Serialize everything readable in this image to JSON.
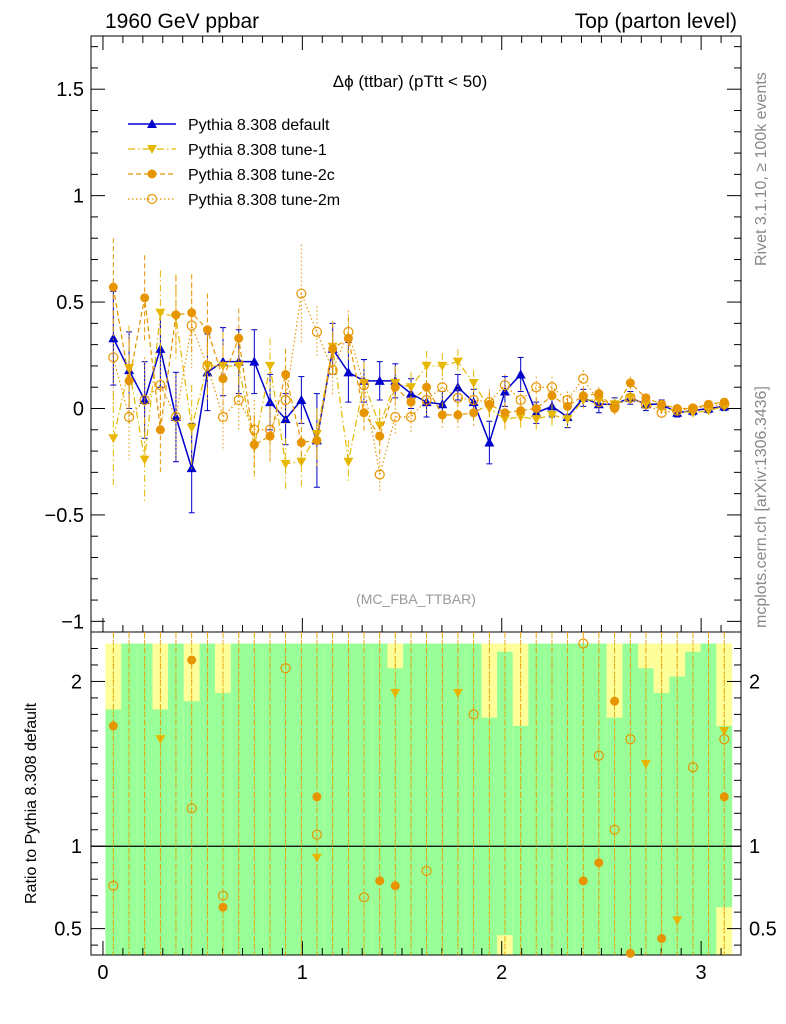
{
  "header": {
    "left_title": "1960 GeV ppbar",
    "right_title": "Top (parton level)"
  },
  "side_labels": {
    "rivet": "Rivet 3.1.10, ≥ 100k events",
    "mcplots": "mcplots.cern.ch [arXiv:1306.3436]"
  },
  "chart_data": [
    {
      "type": "line",
      "panel": "main",
      "title": "Δϕ (ttbar) (pTtt < 50)",
      "analysis_label": "(MC_FBA_TTBAR)",
      "xlabel": "",
      "ylabel": "",
      "xlim": [
        -0.06,
        3.2
      ],
      "ylim": [
        -1.05,
        1.75
      ],
      "yticks": [
        -1,
        -0.5,
        0,
        0.5,
        1,
        1.5
      ],
      "ytick_labels": [
        "−1",
        "−0.5",
        "0",
        "0.5",
        "1",
        "1.5"
      ],
      "legend_position": "top-left",
      "x": [
        0.052,
        0.131,
        0.209,
        0.288,
        0.366,
        0.445,
        0.524,
        0.602,
        0.681,
        0.759,
        0.838,
        0.916,
        0.995,
        1.073,
        1.152,
        1.231,
        1.309,
        1.388,
        1.466,
        1.545,
        1.623,
        1.702,
        1.78,
        1.859,
        1.938,
        2.016,
        2.095,
        2.173,
        2.252,
        2.33,
        2.409,
        2.487,
        2.566,
        2.645,
        2.723,
        2.802,
        2.88,
        2.959,
        3.037,
        3.116
      ],
      "series": [
        {
          "name": "Pythia 8.308 default",
          "color": "#0000cc",
          "marker": "triangle-up",
          "line": "solid",
          "values": [
            0.33,
            0.18,
            0.04,
            0.28,
            -0.04,
            -0.28,
            0.17,
            0.22,
            0.22,
            0.22,
            0.03,
            -0.05,
            0.04,
            -0.15,
            0.28,
            0.17,
            0.13,
            0.13,
            0.13,
            0.07,
            0.03,
            0.02,
            0.1,
            0.03,
            -0.16,
            0.08,
            0.16,
            -0.02,
            0.01,
            -0.04,
            0.05,
            0.02,
            0.02,
            0.05,
            0.02,
            0.02,
            -0.02,
            -0.01,
            0.0,
            0.01
          ],
          "errors": [
            0.22,
            0.18,
            0.18,
            0.18,
            0.21,
            0.21,
            0.18,
            0.16,
            0.15,
            0.15,
            0.13,
            0.12,
            0.11,
            0.22,
            0.12,
            0.14,
            0.1,
            0.09,
            0.08,
            0.07,
            0.07,
            0.06,
            0.06,
            0.06,
            0.1,
            0.07,
            0.08,
            0.05,
            0.05,
            0.05,
            0.04,
            0.04,
            0.03,
            0.03,
            0.03,
            0.02,
            0.02,
            0.02,
            0.02,
            0.02
          ]
        },
        {
          "name": "Pythia 8.308 tune-1",
          "color": "#e6b800",
          "marker": "triangle-down",
          "line": "dash-dot",
          "values": [
            -0.14,
            0.19,
            -0.24,
            0.45,
            0.43,
            -0.09,
            0.2,
            0.2,
            0.2,
            -0.18,
            0.2,
            -0.26,
            -0.25,
            -0.12,
            0.29,
            -0.25,
            0.12,
            -0.08,
            0.12,
            0.1,
            0.2,
            0.2,
            0.22,
            0.12,
            0.0,
            -0.05,
            -0.04,
            -0.05,
            -0.03,
            -0.05,
            0.04,
            0.04,
            0.02,
            0.05,
            0.02,
            0.0,
            -0.01,
            -0.02,
            -0.01,
            0.01
          ],
          "errors": [
            0.22,
            0.2,
            0.2,
            0.2,
            0.2,
            0.2,
            0.17,
            0.16,
            0.15,
            0.14,
            0.13,
            0.12,
            0.12,
            0.12,
            0.12,
            0.1,
            0.1,
            0.08,
            0.08,
            0.07,
            0.07,
            0.06,
            0.06,
            0.06,
            0.06,
            0.05,
            0.05,
            0.05,
            0.05,
            0.04,
            0.04,
            0.03,
            0.03,
            0.03,
            0.02,
            0.02,
            0.02,
            0.02,
            0.02,
            0.02
          ]
        },
        {
          "name": "Pythia 8.308 tune-2c",
          "color": "#e69500",
          "marker": "circle",
          "line": "dashed",
          "values": [
            0.57,
            0.13,
            0.52,
            -0.1,
            0.44,
            0.45,
            0.37,
            0.14,
            0.33,
            -0.17,
            -0.13,
            0.16,
            -0.16,
            -0.15,
            0.28,
            0.33,
            -0.02,
            -0.13,
            0.1,
            0.03,
            0.1,
            -0.03,
            -0.03,
            -0.02,
            0.02,
            -0.02,
            -0.01,
            0.0,
            0.06,
            0.01,
            0.06,
            0.07,
            0.0,
            0.12,
            0.05,
            0.02,
            0.0,
            0.0,
            0.02,
            0.03
          ],
          "errors": [
            0.23,
            0.2,
            0.2,
            0.2,
            0.18,
            0.18,
            0.17,
            0.16,
            0.14,
            0.14,
            0.13,
            0.12,
            0.11,
            0.12,
            0.12,
            0.1,
            0.09,
            0.09,
            0.08,
            0.07,
            0.07,
            0.06,
            0.06,
            0.06,
            0.06,
            0.05,
            0.05,
            0.05,
            0.04,
            0.04,
            0.04,
            0.03,
            0.03,
            0.03,
            0.02,
            0.02,
            0.02,
            0.02,
            0.02,
            0.02
          ]
        },
        {
          "name": "Pythia 8.308 tune-2m",
          "color": "#e69500",
          "marker": "open-circle",
          "line": "dotted",
          "values": [
            0.24,
            -0.04,
            0.04,
            0.11,
            -0.04,
            0.39,
            0.2,
            -0.04,
            0.04,
            -0.1,
            -0.1,
            0.04,
            0.54,
            0.36,
            0.18,
            0.36,
            0.11,
            -0.31,
            -0.04,
            -0.04,
            0.04,
            0.1,
            0.05,
            0.04,
            0.03,
            0.11,
            0.04,
            0.1,
            0.1,
            0.04,
            0.14,
            0.03,
            0.01,
            0.05,
            0.02,
            -0.02,
            -0.01,
            0.0,
            0.01,
            0.02
          ],
          "errors": [
            0.22,
            0.2,
            0.2,
            0.2,
            0.2,
            0.2,
            0.17,
            0.16,
            0.15,
            0.14,
            0.13,
            0.12,
            0.23,
            0.12,
            0.12,
            0.1,
            0.1,
            0.08,
            0.08,
            0.07,
            0.07,
            0.06,
            0.06,
            0.06,
            0.06,
            0.05,
            0.05,
            0.05,
            0.05,
            0.04,
            0.04,
            0.03,
            0.03,
            0.03,
            0.02,
            0.02,
            0.02,
            0.02,
            0.02,
            0.02
          ]
        }
      ]
    },
    {
      "type": "line",
      "panel": "ratio",
      "ylabel": "Ratio to Pythia 8.308 default",
      "xlabel": "",
      "xlim": [
        -0.06,
        3.2
      ],
      "ylim": [
        0.34,
        2.3
      ],
      "reference_line": 1,
      "yticks": [
        0.5,
        1,
        2
      ],
      "ytick_labels": [
        "0.5",
        "1",
        "2"
      ],
      "xticks": [
        0,
        1,
        2,
        3
      ],
      "xtick_labels": [
        "0",
        "1",
        "2",
        "3"
      ],
      "uncertainty_band_colors": {
        "green": "#99ff99",
        "yellow": "#ffff99"
      },
      "band_green_low": [
        0.34,
        0.34,
        0.34,
        0.34,
        0.34,
        0.34,
        0.34,
        0.34,
        0.34,
        0.34,
        0.34,
        0.34,
        0.34,
        0.34,
        0.34,
        0.34,
        0.34,
        0.34,
        0.34,
        0.34,
        0.34,
        0.34,
        0.34,
        0.34,
        0.34,
        0.46,
        0.34,
        0.34,
        0.34,
        0.34,
        0.34,
        0.34,
        0.34,
        0.34,
        0.34,
        0.34,
        0.34,
        0.34,
        0.34,
        0.63
      ],
      "band_green_high": [
        1.83,
        2.23,
        2.23,
        1.83,
        2.23,
        1.88,
        2.23,
        1.93,
        2.23,
        2.23,
        2.23,
        2.23,
        2.23,
        2.23,
        2.23,
        2.23,
        2.23,
        2.23,
        2.08,
        2.23,
        2.23,
        2.23,
        2.23,
        2.23,
        1.78,
        2.18,
        1.73,
        2.23,
        2.23,
        2.23,
        2.23,
        2.23,
        1.78,
        2.23,
        2.08,
        1.93,
        2.03,
        2.18,
        2.23,
        1.73
      ],
      "band_yellow_low": [
        0.34,
        0.34,
        0.34,
        0.34,
        0.34,
        0.34,
        0.34,
        0.34,
        0.34,
        0.34,
        0.34,
        0.34,
        0.34,
        0.34,
        0.34,
        0.34,
        0.34,
        0.34,
        0.34,
        0.34,
        0.34,
        0.34,
        0.34,
        0.34,
        0.34,
        0.34,
        0.34,
        0.34,
        0.34,
        0.34,
        0.34,
        0.34,
        0.34,
        0.34,
        0.34,
        0.34,
        0.34,
        0.34,
        0.34,
        0.34
      ],
      "band_yellow_high": [
        2.23,
        2.23,
        2.23,
        2.23,
        2.23,
        2.23,
        2.23,
        2.23,
        2.23,
        2.23,
        2.23,
        2.23,
        2.23,
        2.23,
        2.23,
        2.23,
        2.23,
        2.23,
        2.23,
        2.23,
        2.23,
        2.23,
        2.23,
        2.23,
        2.23,
        2.23,
        2.23,
        2.23,
        2.23,
        2.23,
        2.23,
        2.23,
        2.23,
        2.23,
        2.23,
        2.23,
        2.23,
        2.23,
        2.23,
        2.23
      ],
      "series": [
        {
          "name": "Pythia 8.308 tune-1",
          "color": "#e6b800",
          "marker": "triangle-down",
          "line": "dash-dot",
          "values": [
            null,
            null,
            null,
            1.65,
            null,
            null,
            null,
            null,
            null,
            null,
            null,
            null,
            null,
            0.93,
            null,
            null,
            null,
            null,
            1.93,
            null,
            null,
            null,
            1.93,
            null,
            null,
            null,
            null,
            null,
            null,
            null,
            null,
            null,
            null,
            null,
            1.5,
            null,
            0.55,
            null,
            null,
            1.7
          ]
        },
        {
          "name": "Pythia 8.308 tune-2c",
          "color": "#e69500",
          "marker": "circle",
          "line": "dashed",
          "values": [
            1.73,
            null,
            null,
            null,
            null,
            2.13,
            null,
            0.63,
            null,
            null,
            null,
            null,
            null,
            1.3,
            null,
            null,
            null,
            0.79,
            0.76,
            null,
            null,
            null,
            null,
            null,
            null,
            null,
            null,
            null,
            null,
            null,
            0.79,
            0.9,
            1.88,
            0.35,
            null,
            0.44,
            null,
            null,
            null,
            1.3
          ]
        },
        {
          "name": "Pythia 8.308 tune-2m",
          "color": "#e69500",
          "marker": "open-circle",
          "line": "dotted",
          "values": [
            0.76,
            null,
            null,
            null,
            null,
            1.23,
            null,
            0.7,
            null,
            null,
            null,
            2.08,
            null,
            1.07,
            null,
            null,
            0.69,
            null,
            null,
            null,
            0.85,
            null,
            null,
            1.8,
            null,
            null,
            null,
            null,
            null,
            null,
            2.23,
            1.55,
            1.1,
            1.65,
            null,
            null,
            null,
            1.48,
            null,
            1.65
          ]
        }
      ]
    }
  ]
}
